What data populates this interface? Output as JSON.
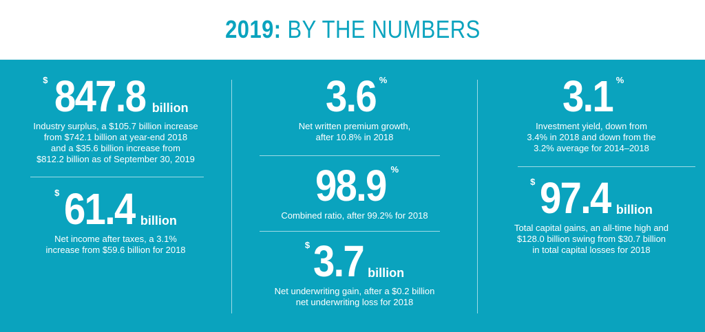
{
  "header": {
    "title_bold": "2019:",
    "title_rest": "BY THE NUMBERS"
  },
  "stats": {
    "surplus": {
      "prefix": "$",
      "value": "847.8",
      "unit": "billion",
      "desc": [
        "Industry surplus, a $105.7 billion increase",
        "from $742.1 billion at year-end 2018",
        "and a $35.6 billion increase from",
        "$812.2 billion as of September 30, 2019"
      ]
    },
    "net_income": {
      "prefix": "$",
      "value": "61.4",
      "unit": "billion",
      "desc": [
        "Net income after taxes, a 3.1%",
        "increase from $59.6 billion for 2018"
      ]
    },
    "premium_growth": {
      "value": "3.6",
      "suffix": "%",
      "desc": [
        "Net written premium growth,",
        "after 10.8% in 2018"
      ]
    },
    "combined_ratio": {
      "value": "98.9",
      "suffix": "%",
      "desc": [
        "Combined ratio, after 99.2% for 2018"
      ]
    },
    "underwriting": {
      "prefix": "$",
      "value": "3.7",
      "unit": "billion",
      "desc": [
        "Net underwriting gain, after a $0.2 billion",
        "net underwriting loss for 2018"
      ]
    },
    "investment_yield": {
      "value": "3.1",
      "suffix": "%",
      "desc": [
        "Investment yield, down from",
        "3.4% in 2018 and down from the",
        "3.2% average for 2014–2018"
      ]
    },
    "capital_gains": {
      "prefix": "$",
      "value": "97.4",
      "unit": "billion",
      "desc": [
        "Total capital gains, an all-time high and",
        "$128.0 billion swing from $30.7 billion",
        "in total capital losses for 2018"
      ]
    }
  },
  "colors": {
    "background": "#0aa3be",
    "header_bg": "#ffffff",
    "title": "#0aa3be",
    "text": "#ffffff",
    "divider": "#9fdbe6"
  }
}
